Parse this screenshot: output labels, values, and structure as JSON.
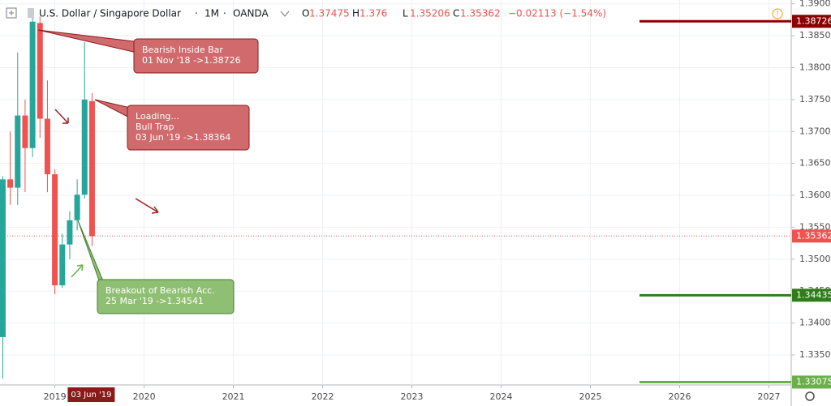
{
  "chart_data": {
    "type": "candlestick",
    "symbol": "U.S. Dollar / Singapore Dollar",
    "interval": "1M",
    "source": "OANDA",
    "ohlc_legend": {
      "open_prefix": "O",
      "open": 1.37475,
      "high_prefix": "H",
      "high": 1.376,
      "low_prefix": "L",
      "low": 1.35206,
      "close_prefix": "C",
      "close": 1.35362,
      "change_label": "−0.02113 (−1.54%)"
    },
    "x": [
      "2018-06-01",
      "2018-07-01",
      "2018-08-01",
      "2018-09-01",
      "2018-10-01",
      "2018-11-01",
      "2018-12-01",
      "2019-01-01",
      "2019-02-01",
      "2019-03-01",
      "2019-04-01",
      "2019-05-01",
      "2019-06-01"
    ],
    "open": [
      1.3378,
      1.3625,
      1.3612,
      1.3725,
      1.3674,
      1.387,
      1.372,
      1.3633,
      1.3459,
      1.3523,
      1.3561,
      1.3601,
      1.37475
    ],
    "high": [
      1.363,
      1.37,
      1.3824,
      1.375,
      1.388,
      1.388,
      1.378,
      1.364,
      1.354,
      1.3575,
      1.3625,
      1.384,
      1.376
    ],
    "low": [
      1.3313,
      1.3585,
      1.3585,
      1.3605,
      1.366,
      1.369,
      1.3605,
      1.3445,
      1.3455,
      1.35,
      1.3545,
      1.3595,
      1.35206
    ],
    "close": [
      1.3625,
      1.3612,
      1.3725,
      1.3674,
      1.3872,
      1.372,
      1.3633,
      1.3459,
      1.3523,
      1.3561,
      1.3601,
      1.375,
      1.35362
    ],
    "up_color": "#26a69a",
    "down_color": "#ef5350",
    "xlim": [
      "2018-05-20",
      "2027-04-01"
    ],
    "xticks": [
      2019,
      2020,
      2021,
      2022,
      2023,
      2024,
      2025,
      2026,
      2027
    ],
    "ylim": [
      1.3303,
      1.3906
    ],
    "yticks": [
      {
        "value": 1.335,
        "label": "1.33500"
      },
      {
        "value": 1.34,
        "label": "1.34000"
      },
      {
        "value": 1.345,
        "label": "1.34500"
      },
      {
        "value": 1.35,
        "label": "1.35000"
      },
      {
        "value": 1.355,
        "label": "1.35500"
      },
      {
        "value": 1.36,
        "label": "1.36000"
      },
      {
        "value": 1.365,
        "label": "1.36500"
      },
      {
        "value": 1.37,
        "label": "1.37000"
      },
      {
        "value": 1.375,
        "label": "1.37500"
      },
      {
        "value": 1.38,
        "label": "1.38000"
      },
      {
        "value": 1.385,
        "label": "1.38500"
      },
      {
        "value": 1.39,
        "label": "1.39000"
      }
    ],
    "grid": true,
    "price_line": {
      "value": 1.35362,
      "color": "#ef5350"
    },
    "levels": [
      {
        "value": 1.38726,
        "color": "#8b0000"
      },
      {
        "value": 1.34435,
        "color": "#2e7d18"
      },
      {
        "value": 1.33075,
        "color": "#6aaf4a"
      }
    ],
    "annotations": [
      {
        "lines": [
          "Bearish Inside Bar",
          "01 Nov '18 ->1.38726"
        ],
        "color": "#d06a6c"
      },
      {
        "lines": [
          "Loading...",
          "Bull Trap",
          "03 Jun '19 ->1.38364"
        ],
        "color": "#d06a6c"
      },
      {
        "lines": [
          "Breakout of Bearish Acc.",
          "25 Mar '19 ->1.34541"
        ],
        "color": "#8fbf72"
      }
    ],
    "cursor_label": "03 Jun '19"
  }
}
